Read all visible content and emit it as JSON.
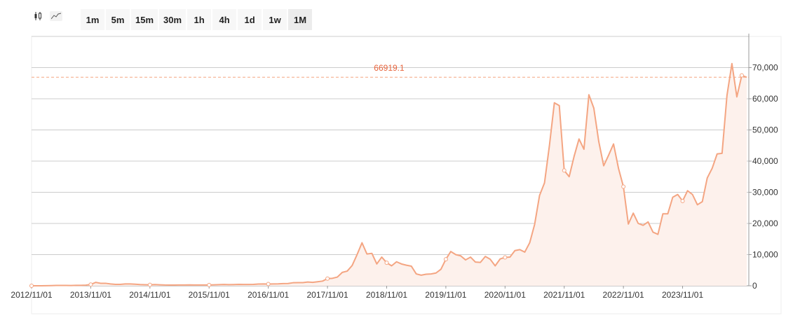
{
  "toolbar": {
    "chart_types": [
      {
        "icon": "candlestick-icon",
        "active": false
      },
      {
        "icon": "line-chart-icon",
        "active": true
      }
    ],
    "intervals": [
      "1m",
      "5m",
      "15m",
      "30m",
      "1h",
      "4h",
      "1d",
      "1w",
      "1M"
    ],
    "active_interval": "1M"
  },
  "colors": {
    "line": "#f4a582",
    "area": "#fdf1ec",
    "ref_line": "#f4a582",
    "ref_label": "#e8643c",
    "grid": "#cccccc",
    "text": "#333333"
  },
  "chart_data": {
    "type": "line",
    "title": "",
    "x_tick_labels": [
      "2012/11/01",
      "2013/11/01",
      "2014/11/01",
      "2015/11/01",
      "2016/11/01",
      "2017/11/01",
      "2018/11/01",
      "2019/11/01",
      "2020/11/01",
      "2021/11/01",
      "2022/11/01",
      "2023/11/01"
    ],
    "y_tick_labels": [
      "0",
      "10,000",
      "20,000",
      "30,000",
      "40,000",
      "50,000",
      "60,000",
      "70,000"
    ],
    "ylim": [
      0,
      80000
    ],
    "grid": true,
    "reference_line": {
      "value": 66919.1,
      "label": "66919.1"
    },
    "series": [
      {
        "values": [
          11,
          13,
          13,
          20,
          50,
          100,
          120,
          100,
          90,
          130,
          150,
          200,
          400,
          1100,
          800,
          800,
          600,
          450,
          450,
          600,
          600,
          500,
          400,
          350,
          320,
          380,
          300,
          240,
          230,
          230,
          250,
          240,
          280,
          260,
          260,
          240,
          240,
          310,
          360,
          420,
          370,
          400,
          440,
          430,
          420,
          440,
          550,
          580,
          570,
          600,
          610,
          710,
          740,
          970,
          1000,
          1000,
          1200,
          1100,
          1300,
          1500,
          2300,
          2400,
          2800,
          4300,
          4700,
          6500,
          10000,
          13800,
          10200,
          10400,
          7000,
          9200,
          7400,
          6400,
          7700,
          7000,
          6600,
          6300,
          3800,
          3400,
          3700,
          3800,
          4100,
          5300,
          8500,
          11000,
          10000,
          9600,
          8300,
          9200,
          7600,
          7500,
          9400,
          8500,
          6400,
          8600,
          9100,
          9200,
          11300,
          11600,
          10800,
          13800,
          19700,
          29000,
          33000,
          45000,
          58700,
          57800,
          37000,
          35000,
          41500,
          47100,
          43800,
          61300,
          57000,
          46300,
          38500,
          41900,
          45500,
          37700,
          31800,
          19800,
          23300,
          20000,
          19400,
          20500,
          17200,
          16500,
          23100,
          23100,
          28400,
          29300,
          27200,
          30500,
          29300,
          26000,
          27000,
          34600,
          37700,
          42300,
          42500,
          61100,
          71300,
          60600,
          67500,
          66900
        ]
      }
    ]
  }
}
